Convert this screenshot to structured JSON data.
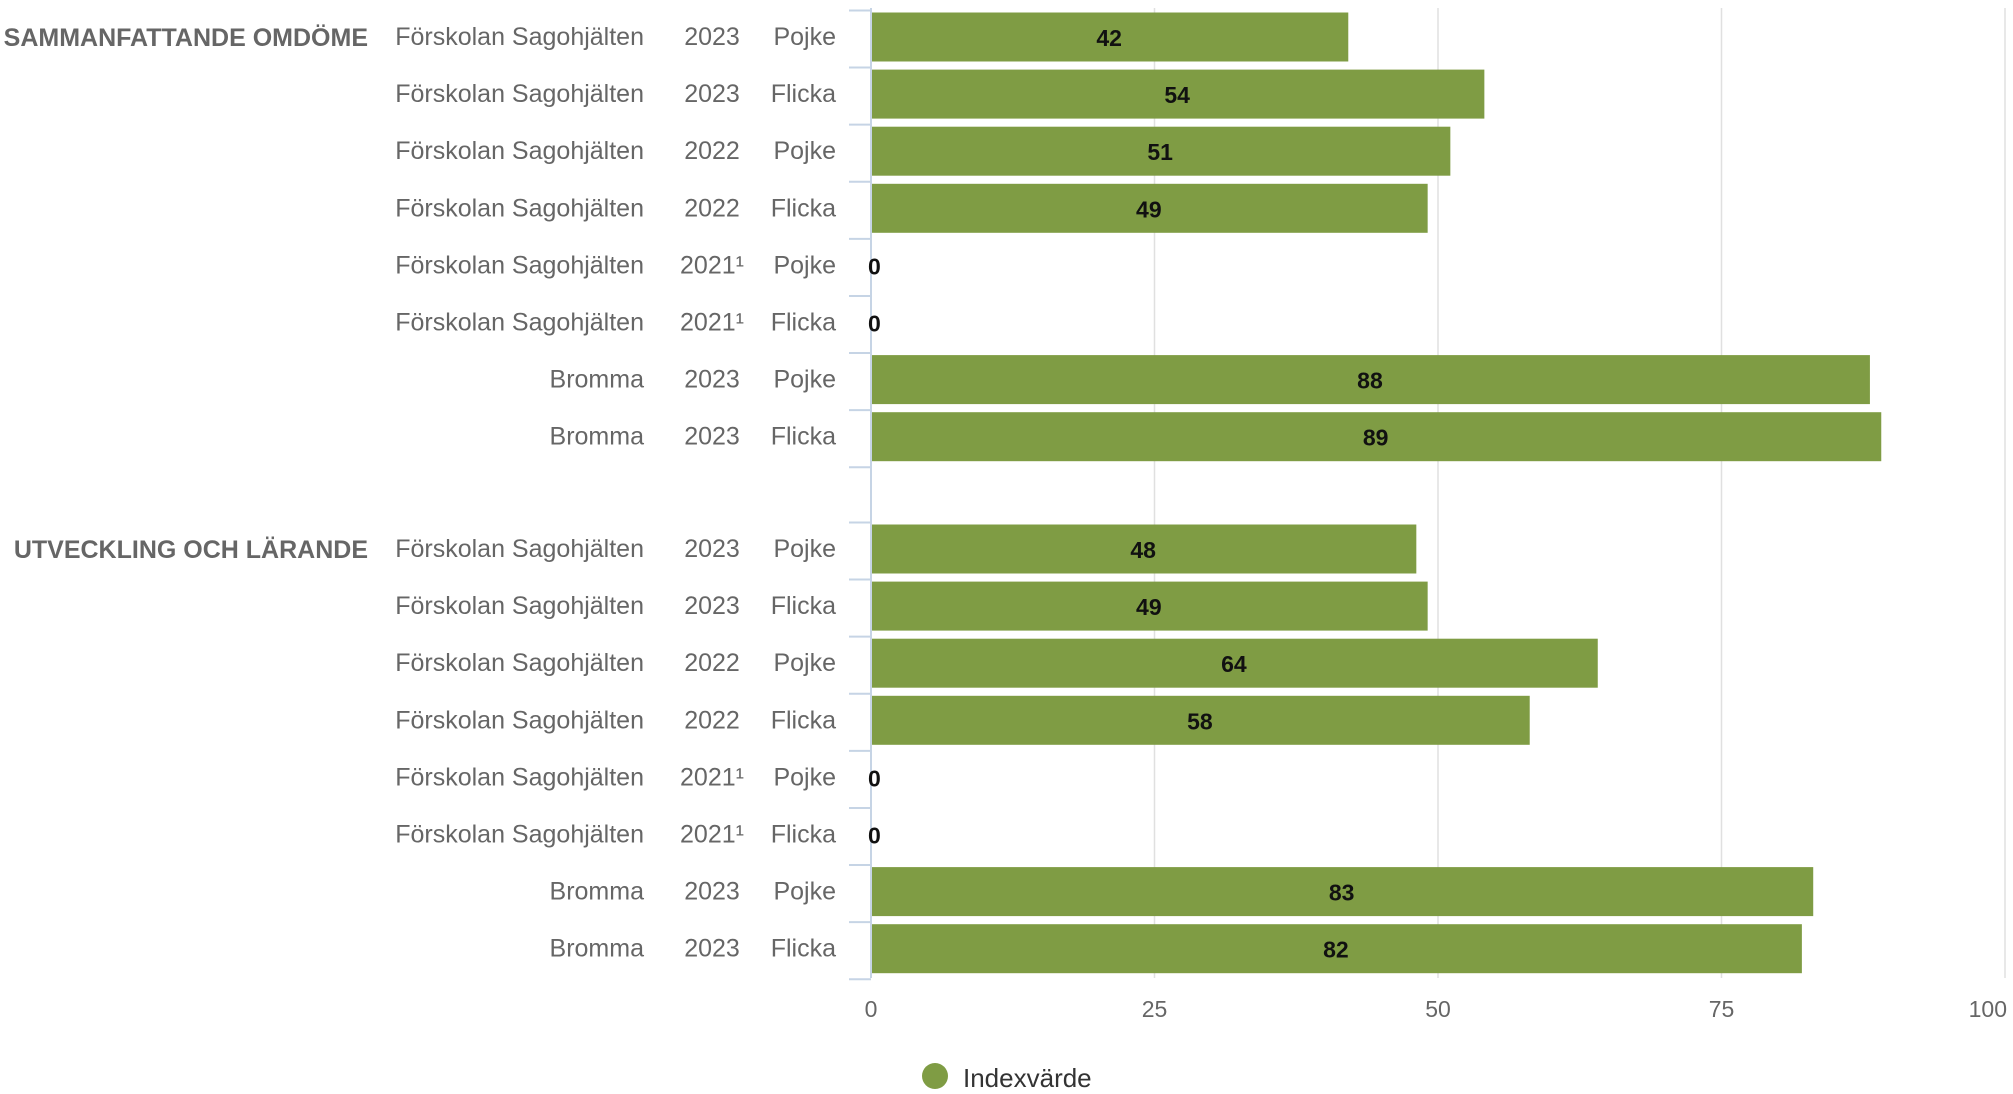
{
  "chart_data": {
    "type": "bar",
    "orientation": "horizontal",
    "xlim": [
      0,
      100
    ],
    "ticks": [
      "0",
      "25",
      "50",
      "75",
      "100"
    ],
    "grid": true,
    "legend": {
      "position": "bottom-center",
      "label": "Indexvärde",
      "color": "#7f9c44"
    },
    "colors": {
      "bar": "#7f9c44",
      "grid": "#e0e0e0",
      "axis": "#c6d4e5",
      "label": "#666666",
      "value": "#111111"
    },
    "groups": [
      {
        "name": "SAMMANFATTANDE OMDÖME",
        "rows": [
          {
            "unit": "Förskolan Sagohjälten",
            "year": "2023",
            "gender": "Pojke",
            "value": 42
          },
          {
            "unit": "Förskolan Sagohjälten",
            "year": "2023",
            "gender": "Flicka",
            "value": 54
          },
          {
            "unit": "Förskolan Sagohjälten",
            "year": "2022",
            "gender": "Pojke",
            "value": 51
          },
          {
            "unit": "Förskolan Sagohjälten",
            "year": "2022",
            "gender": "Flicka",
            "value": 49
          },
          {
            "unit": "Förskolan Sagohjälten",
            "year": "2021¹",
            "gender": "Pojke",
            "value": 0
          },
          {
            "unit": "Förskolan Sagohjälten",
            "year": "2021¹",
            "gender": "Flicka",
            "value": 0
          },
          {
            "unit": "Bromma",
            "year": "2023",
            "gender": "Pojke",
            "value": 88
          },
          {
            "unit": "Bromma",
            "year": "2023",
            "gender": "Flicka",
            "value": 89
          }
        ]
      },
      {
        "name": "UTVECKLING OCH LÄRANDE",
        "rows": [
          {
            "unit": "Förskolan Sagohjälten",
            "year": "2023",
            "gender": "Pojke",
            "value": 48
          },
          {
            "unit": "Förskolan Sagohjälten",
            "year": "2023",
            "gender": "Flicka",
            "value": 49
          },
          {
            "unit": "Förskolan Sagohjälten",
            "year": "2022",
            "gender": "Pojke",
            "value": 64
          },
          {
            "unit": "Förskolan Sagohjälten",
            "year": "2022",
            "gender": "Flicka",
            "value": 58
          },
          {
            "unit": "Förskolan Sagohjälten",
            "year": "2021¹",
            "gender": "Pojke",
            "value": 0
          },
          {
            "unit": "Förskolan Sagohjälten",
            "year": "2021¹",
            "gender": "Flicka",
            "value": 0
          },
          {
            "unit": "Bromma",
            "year": "2023",
            "gender": "Pojke",
            "value": 83
          },
          {
            "unit": "Bromma",
            "year": "2023",
            "gender": "Flicka",
            "value": 82
          }
        ]
      }
    ]
  }
}
